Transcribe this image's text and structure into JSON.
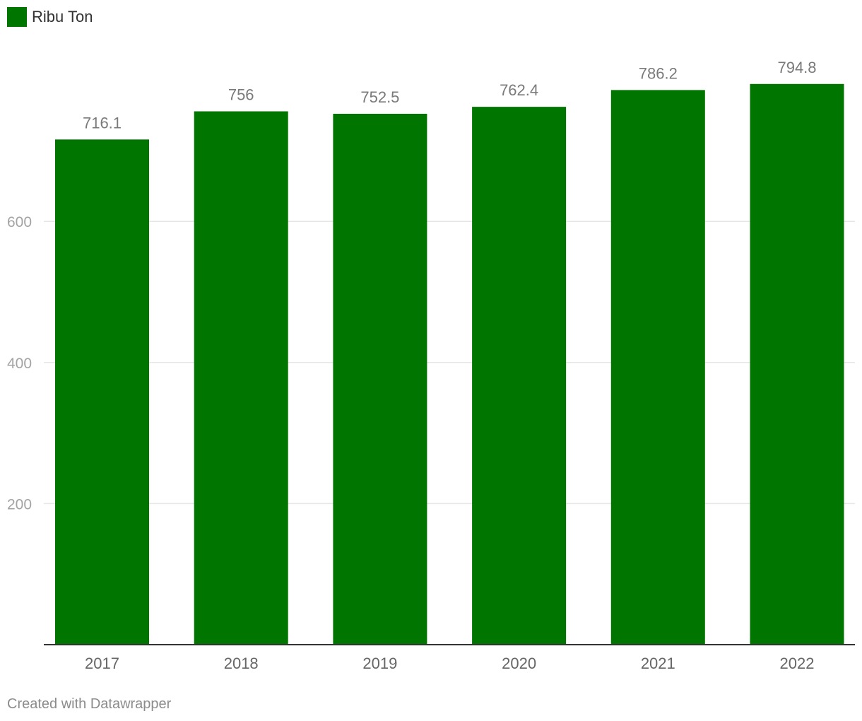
{
  "legend": {
    "label": "Ribu Ton",
    "color": "#007500"
  },
  "footer": {
    "credit": "Created with Datawrapper"
  },
  "chart_data": {
    "type": "bar",
    "categories": [
      "2017",
      "2018",
      "2019",
      "2020",
      "2021",
      "2022"
    ],
    "series": [
      {
        "name": "Ribu Ton",
        "values": [
          716.1,
          756,
          752.5,
          762.4,
          786.2,
          794.8
        ],
        "labels": [
          "716.1",
          "756",
          "752.5",
          "762.4",
          "786.2",
          "794.8"
        ]
      }
    ],
    "yticks": [
      200,
      400,
      600
    ],
    "ylim": [
      0,
      800
    ],
    "grid": true,
    "legend_position": "top-left",
    "colors": {
      "bar": "#007500",
      "grid": "#e6e6e6",
      "axis": "#333333"
    }
  }
}
